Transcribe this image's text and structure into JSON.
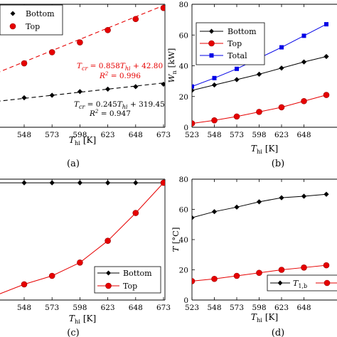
{
  "chart_data": [
    {
      "type": "scatter",
      "panel_label": "(a)",
      "xlabel": "T_hi [K]",
      "ylabel": "",
      "x_ticks": [
        548,
        573,
        598,
        623,
        648,
        673
      ],
      "xlim": [
        523,
        673
      ],
      "ylim": [
        0,
        1
      ],
      "grid": false,
      "legend_position": "top-left",
      "series": [
        {
          "name": "Bottom",
          "color": "#000000",
          "marker": "diamond",
          "x": [
            548,
            573,
            598,
            623,
            648,
            673
          ],
          "y": [
            0.24,
            0.26,
            0.29,
            0.31,
            0.33,
            0.35
          ]
        },
        {
          "name": "Top",
          "color": "#e60000",
          "marker": "circle",
          "x": [
            548,
            573,
            598,
            623,
            648,
            673
          ],
          "y": [
            0.52,
            0.61,
            0.69,
            0.79,
            0.88,
            0.97
          ]
        }
      ],
      "fits": [
        {
          "color": "#000000",
          "x0": 523,
          "y0": 0.21,
          "x1": 673,
          "y1": 0.36
        },
        {
          "color": "#e60000",
          "x0": 523,
          "y0": 0.44,
          "x1": 673,
          "y1": 0.99
        }
      ],
      "annotations": [
        {
          "eq": "T_cr = 0.858T_hi + 42.80",
          "r2": "R^2 = 0.996",
          "color": "#e60000"
        },
        {
          "eq": "T_cr = 0.245T_hi + 319.45",
          "r2": "R^2 = 0.947",
          "color": "#000000"
        }
      ]
    },
    {
      "type": "line",
      "panel_label": "(b)",
      "xlabel": "T_hi [K]",
      "ylabel": "W_n [kW]",
      "x_ticks": [
        523,
        548,
        573,
        598,
        623,
        648
      ],
      "y_ticks": [
        0,
        20,
        40,
        60,
        80
      ],
      "xlim": [
        523,
        673
      ],
      "ylim": [
        0,
        80
      ],
      "grid": false,
      "legend_position": "top-left",
      "series": [
        {
          "name": "Bottom",
          "color": "#000000",
          "marker": "diamond",
          "x": [
            523,
            548,
            573,
            598,
            623,
            648,
            673
          ],
          "y": [
            24,
            27.5,
            31,
            34.5,
            38.5,
            42.5,
            46
          ]
        },
        {
          "name": "Top",
          "color": "#e60000",
          "marker": "circle",
          "x": [
            523,
            548,
            573,
            598,
            623,
            648,
            673
          ],
          "y": [
            2.5,
            4.5,
            7,
            10,
            13,
            17,
            21
          ]
        },
        {
          "name": "Total",
          "color": "#0000e6",
          "marker": "square",
          "x": [
            523,
            548,
            573,
            598,
            623,
            648,
            673
          ],
          "y": [
            26.5,
            32,
            38,
            45,
            52,
            59.5,
            67
          ]
        }
      ]
    },
    {
      "type": "line",
      "panel_label": "(c)",
      "xlabel": "T_hi [K]",
      "ylabel": "",
      "x_ticks": [
        548,
        573,
        598,
        623,
        648,
        673
      ],
      "xlim": [
        523,
        673
      ],
      "ylim": [
        0,
        1
      ],
      "grid": false,
      "legend_position": "bottom-right",
      "series": [
        {
          "name": "Bottom",
          "color": "#000000",
          "marker": "diamond",
          "x": [
            523,
            548,
            573,
            598,
            623,
            648,
            673
          ],
          "y": [
            0.97,
            0.97,
            0.97,
            0.97,
            0.97,
            0.97,
            0.97
          ]
        },
        {
          "name": "Top",
          "color": "#e60000",
          "marker": "circle",
          "x": [
            523,
            548,
            573,
            598,
            623,
            648,
            673
          ],
          "y": [
            0.04,
            0.13,
            0.2,
            0.31,
            0.49,
            0.72,
            0.97
          ]
        }
      ]
    },
    {
      "type": "line",
      "panel_label": "(d)",
      "xlabel": "T_hi [K]",
      "ylabel": "T [°C]",
      "x_ticks": [
        523,
        548,
        573,
        598,
        623,
        648
      ],
      "y_ticks": [
        0,
        20,
        40,
        60,
        80
      ],
      "xlim": [
        523,
        673
      ],
      "ylim": [
        0,
        80
      ],
      "grid": false,
      "legend_position": "bottom-right",
      "series": [
        {
          "name": "T_1,b",
          "color": "#000000",
          "marker": "diamond",
          "x": [
            523,
            548,
            573,
            598,
            623,
            648,
            673
          ],
          "y": [
            54.5,
            58.5,
            61.5,
            65,
            67.7,
            68.7,
            70
          ]
        },
        {
          "name": "",
          "color": "#e60000",
          "marker": "circle",
          "x": [
            523,
            548,
            573,
            598,
            623,
            648,
            673
          ],
          "y": [
            12.5,
            14,
            16,
            18,
            20,
            21.5,
            23
          ]
        }
      ]
    }
  ]
}
